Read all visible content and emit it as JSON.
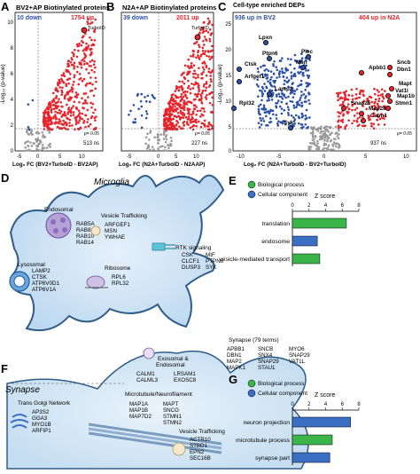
{
  "panels": {
    "A": {
      "letter": "A",
      "title": "BV2+AP Biotinylated proteins",
      "down": "10 down",
      "up": "1754 up",
      "highlight": "TurboID",
      "p": "p= 0.05",
      "ns": "513 ns",
      "xlabel": "Log₂ FC (BV2+TurboID - BV2AP)",
      "ylabel": "-Log₁₀ (p-value)",
      "xticks": [
        "-5",
        "0",
        "5",
        "10"
      ],
      "yticks": [
        "0",
        "2",
        "4",
        "6",
        "8",
        "10"
      ]
    },
    "B": {
      "letter": "B",
      "title": "N2A+AP Biotinylated proteins",
      "down": "39 down",
      "up": "2011 up",
      "highlight": "TurboID",
      "p": "p= 0.05",
      "ns": "227 ns",
      "xlabel": "Log₂ FC (N2A+TurboID - N2AAP)",
      "xticks": [
        "-5",
        "0",
        "5",
        "10"
      ]
    },
    "C": {
      "letter": "C",
      "title": "Cell-type enriched DEPs",
      "left": "936 up in BV2",
      "right": "404 up in N2A",
      "p": "p= 0.05",
      "ns": "937 ns",
      "xlabel": "Log₂ FC (N2A+TurboID - BV2+TurboID)",
      "ylabel": "-Log₁₀ (p-value)",
      "xticks": [
        "-10",
        "-5",
        "0",
        "5",
        "10"
      ],
      "yticks": [
        "0",
        "5",
        "10",
        "15",
        "20",
        "25"
      ],
      "blue_labels": [
        "Lpxn",
        "Ctsk",
        "Ptpn6",
        "Arfgef1",
        "Plec",
        "Lamp2",
        "Msn",
        "Rpl32",
        "Syk"
      ],
      "red_labels": [
        "Sncb",
        "Apbb1",
        "Dbn1",
        "Snap25",
        "Mapt",
        "Vat1l",
        "Map1b",
        "Stmn1",
        "Map2b",
        "Calm1"
      ]
    },
    "D": {
      "letter": "D",
      "title": "Microglia",
      "groups": [
        {
          "name": "Endosomal",
          "items": [
            "RAB5A",
            "RAB8A",
            "RAB10",
            "RAB14"
          ]
        },
        {
          "name": "Vesicle Trafficking",
          "items": [
            "ARFGEF1",
            "MSN",
            "YWHAE"
          ]
        },
        {
          "name": "Lysosomal",
          "items": [
            "LAMP2",
            "CTSK",
            "ATP6V0D1",
            "ATP6V1A"
          ]
        },
        {
          "name": "Ribosome",
          "items": [
            "RPL6",
            "RPL32"
          ]
        },
        {
          "name": "RTK signaling",
          "items": [
            "CSK",
            "MIF",
            "CLCF1",
            "PTPN6",
            "DUSP3",
            "SYK"
          ]
        }
      ]
    },
    "E": {
      "letter": "E",
      "legend": [
        "Biological process",
        "Cellular component"
      ],
      "axis_title": "Z score",
      "ticks": [
        "0",
        "2",
        "4",
        "6",
        "8"
      ]
    },
    "F": {
      "letter": "F",
      "title": "Synapse",
      "synapse_title": "Synapse (79 terms)",
      "synapse_cols": [
        [
          "APBB1",
          "DBN1",
          "MAP2",
          "MAPK1"
        ],
        [
          "SNCB",
          "SNX4",
          "SNAP29",
          "STAU1"
        ],
        [
          "MYO6",
          "SNAP29",
          "VAT1L"
        ]
      ],
      "groups": [
        {
          "name": "Exosomal &",
          "name2": "Endosomal",
          "items": [
            "CALM1",
            "CALML3"
          ],
          "items2": [
            "LRSAM1",
            "EXOSC8"
          ]
        },
        {
          "name": "Microtubule/Neurofilament",
          "items": [
            "MAP1A",
            "MAP1B",
            "MAP7D2"
          ],
          "items2": [
            "MAPT",
            "SNCG",
            "STMN1",
            "STMN2"
          ]
        },
        {
          "name": "Trans Golgi Network",
          "items": [
            "AP3S2",
            "GGA3",
            "MYO1B",
            "ARFIP1"
          ]
        },
        {
          "name": "Vesicle Trafficking",
          "items": [
            "ACTR10",
            "STBD1",
            "EPN2",
            "SEC16B"
          ]
        }
      ]
    },
    "G": {
      "letter": "G",
      "legend": [
        "Biological process",
        "Cellular component"
      ],
      "axis_title": "Z score",
      "ticks": [
        "0",
        "2",
        "4",
        "6",
        "8"
      ]
    }
  },
  "chart_data": [
    {
      "type": "bar",
      "panel": "E",
      "xlabel": "Z score",
      "xlim": [
        0,
        8
      ],
      "categories": [
        "translation",
        "endosome",
        "vesicle-mediated transport"
      ],
      "values": [
        6.5,
        3.0,
        3.3
      ],
      "kinds": [
        "Biological process",
        "Cellular component",
        "Biological process"
      ]
    },
    {
      "type": "bar",
      "panel": "G",
      "xlabel": "Z score",
      "xlim": [
        0,
        8
      ],
      "categories": [
        "neuron projection",
        "microtubule process",
        "synapse part"
      ],
      "values": [
        7.0,
        4.8,
        4.5
      ],
      "kinds": [
        "Cellular component",
        "Biological process",
        "Cellular component"
      ]
    }
  ],
  "colors": {
    "bp": "#3bb54a",
    "cc": "#3a6fc4",
    "red": "#e8242b",
    "blue": "#2b4fa8",
    "grey": "#9a9a9a"
  }
}
